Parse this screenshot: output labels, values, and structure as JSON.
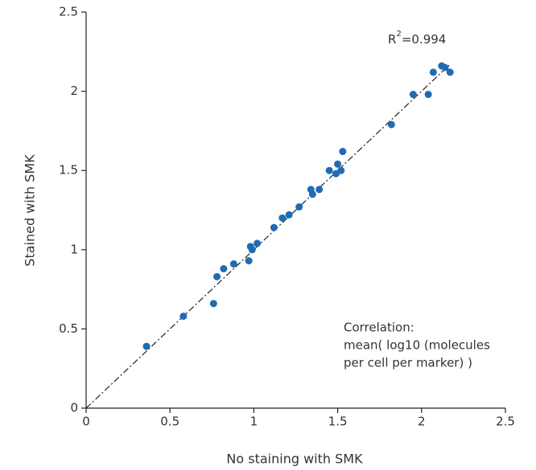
{
  "chart_data": {
    "type": "scatter",
    "x_label": "No staining with SMK",
    "y_label": "Stained with SMK",
    "xlim": [
      0,
      2.5
    ],
    "ylim": [
      0,
      2.5
    ],
    "xticks": [
      0,
      0.5,
      1,
      1.5,
      2,
      2.5
    ],
    "yticks": [
      0,
      0.5,
      1,
      1.5,
      2,
      2.5
    ],
    "grid": false,
    "color": "#1f6bb5",
    "x": [
      0.36,
      0.58,
      0.76,
      0.78,
      0.82,
      0.88,
      0.97,
      0.98,
      0.99,
      1.02,
      1.12,
      1.17,
      1.21,
      1.27,
      1.34,
      1.35,
      1.39,
      1.45,
      1.49,
      1.5,
      1.52,
      1.53,
      1.82,
      1.95,
      2.04,
      2.07,
      2.12,
      2.14,
      2.17
    ],
    "values": [
      0.39,
      0.58,
      0.66,
      0.83,
      0.88,
      0.91,
      0.93,
      1.02,
      1.0,
      1.04,
      1.14,
      1.2,
      1.22,
      1.27,
      1.38,
      1.35,
      1.38,
      1.5,
      1.48,
      1.54,
      1.5,
      1.62,
      1.79,
      1.98,
      1.98,
      2.12,
      2.16,
      2.15,
      2.12
    ],
    "fit_line": {
      "x": [
        0,
        2.17
      ],
      "y": [
        0,
        2.17
      ]
    },
    "r_squared": {
      "base": "R",
      "sup": "2",
      "rest": "=0.994"
    },
    "annotation": [
      "Correlation:",
      "mean( log10 (molecules",
      "per cell per marker) )"
    ]
  }
}
